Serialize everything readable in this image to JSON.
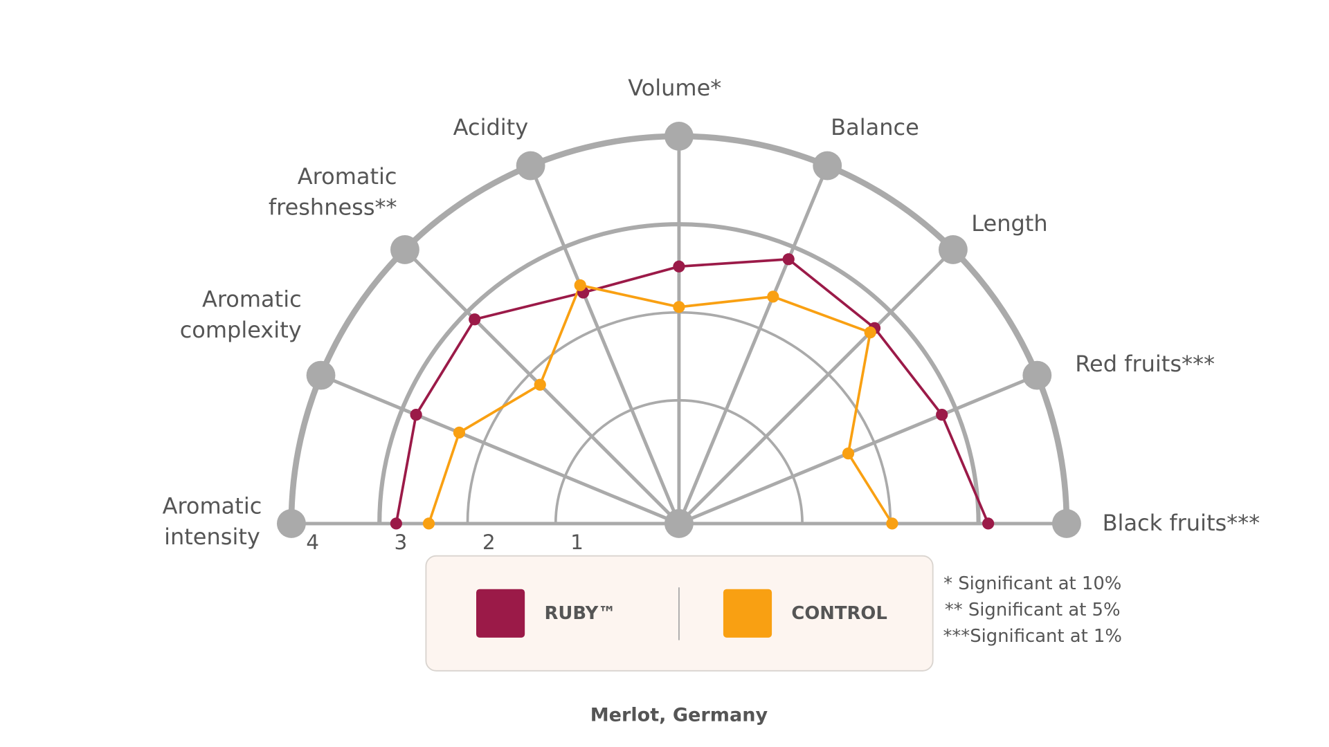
{
  "chart_data": {
    "type": "radar",
    "title": "Merlot, Germany",
    "categories": [
      [
        "Aromatic",
        "intensity"
      ],
      [
        "Aromatic",
        "complexity"
      ],
      [
        "Aromatic",
        "freshness**"
      ],
      [
        "Acidity"
      ],
      [
        "Volume*"
      ],
      [
        "Balance"
      ],
      [
        "Length"
      ],
      [
        "Red fruits***"
      ],
      [
        "Black fruits***"
      ]
    ],
    "rlim": [
      -0.4,
      4
    ],
    "rticks": [
      1,
      2,
      3,
      4
    ],
    "series": [
      {
        "name": "RUBY™",
        "color": "#9b1a48",
        "values": [
          2.81,
          2.83,
          2.88,
          2.44,
          2.52,
          2.85,
          2.74,
          2.83,
          3.11
        ]
      },
      {
        "name": "CONTROL",
        "color": "#f9a012",
        "values": [
          2.44,
          2.3,
          1.83,
          2.53,
          2.06,
          2.39,
          2.67,
          1.68,
          2.02
        ]
      }
    ],
    "notes": [
      "* Significant at 10%",
      "** Significant at 5%",
      "***Significant at 1%"
    ]
  }
}
